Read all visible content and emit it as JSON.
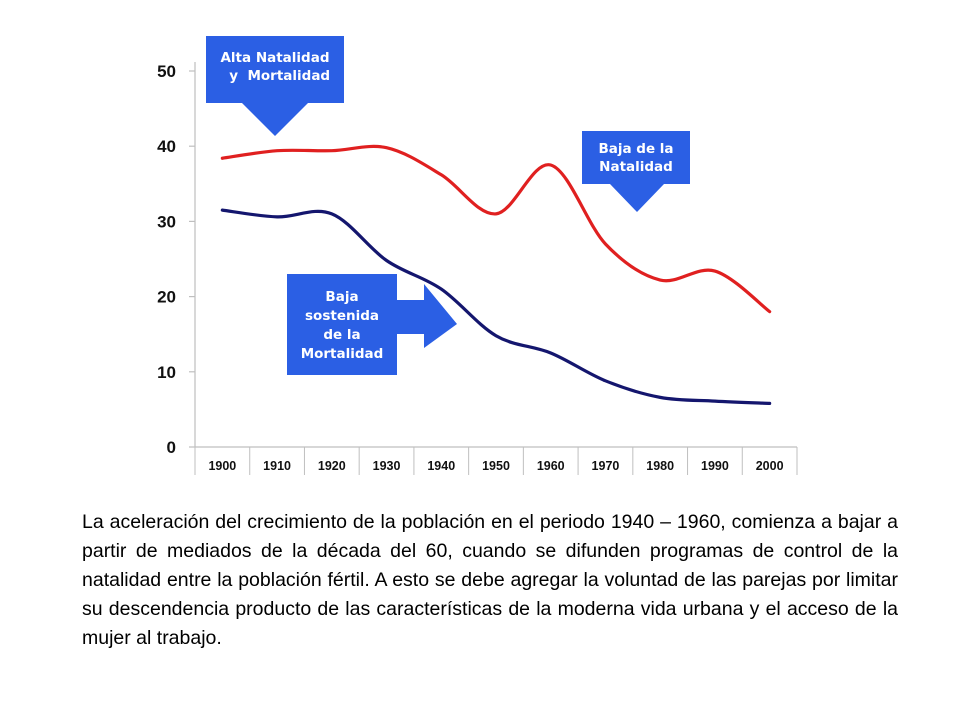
{
  "chart_data": {
    "type": "line",
    "title": "",
    "xlabel": "",
    "ylabel": "",
    "x": [
      1900,
      1910,
      1920,
      1930,
      1940,
      1950,
      1960,
      1970,
      1980,
      1990,
      2000
    ],
    "x_tick_labels": [
      "1900",
      "1910",
      "1920",
      "1930",
      "1940",
      "1950",
      "1960",
      "1970",
      "1980",
      "1990",
      "2000"
    ],
    "y_ticks": [
      0,
      10,
      20,
      30,
      40,
      50
    ],
    "ylim": [
      0,
      50
    ],
    "xlim": [
      1895,
      2005
    ],
    "grid": "vertical",
    "legend": "none",
    "series": [
      {
        "color": "#e02020",
        "points": [
          [
            1900,
            38.4
          ],
          [
            1910,
            39.4
          ],
          [
            1920,
            39.4
          ],
          [
            1930,
            39.8
          ],
          [
            1940,
            36.2
          ],
          [
            1950,
            31.0
          ],
          [
            1960,
            37.5
          ],
          [
            1970,
            27.0
          ],
          [
            1980,
            22.2
          ],
          [
            1990,
            23.4
          ],
          [
            2000,
            18.0
          ]
        ]
      },
      {
        "color": "#14166e",
        "points": [
          [
            1900,
            31.5
          ],
          [
            1910,
            30.6
          ],
          [
            1920,
            31.0
          ],
          [
            1930,
            24.8
          ],
          [
            1940,
            21.0
          ],
          [
            1950,
            14.8
          ],
          [
            1960,
            12.5
          ],
          [
            1970,
            8.8
          ],
          [
            1980,
            6.6
          ],
          [
            1990,
            6.1
          ],
          [
            2000,
            5.8
          ]
        ]
      }
    ],
    "annotations": [
      {
        "lines": [
          "Alta Natalidad",
          "  y  Mortalidad"
        ],
        "arrow": "down"
      },
      {
        "lines": [
          "Baja de la",
          "Natalidad"
        ],
        "arrow": "down"
      },
      {
        "lines": [
          "Baja",
          "sostenida",
          "de la",
          "Mortalidad"
        ],
        "arrow": "right"
      }
    ]
  },
  "caption": "La aceleración del crecimiento de la población en el periodo 1940 – 1960, comienza a bajar a partir de mediados de la década del 60, cuando se difunden programas de control de la natalidad entre la población fértil. A esto se debe agregar la voluntad de las parejas por limitar su descendencia producto de las características de la moderna vida urbana y el acceso de la mujer al trabajo."
}
